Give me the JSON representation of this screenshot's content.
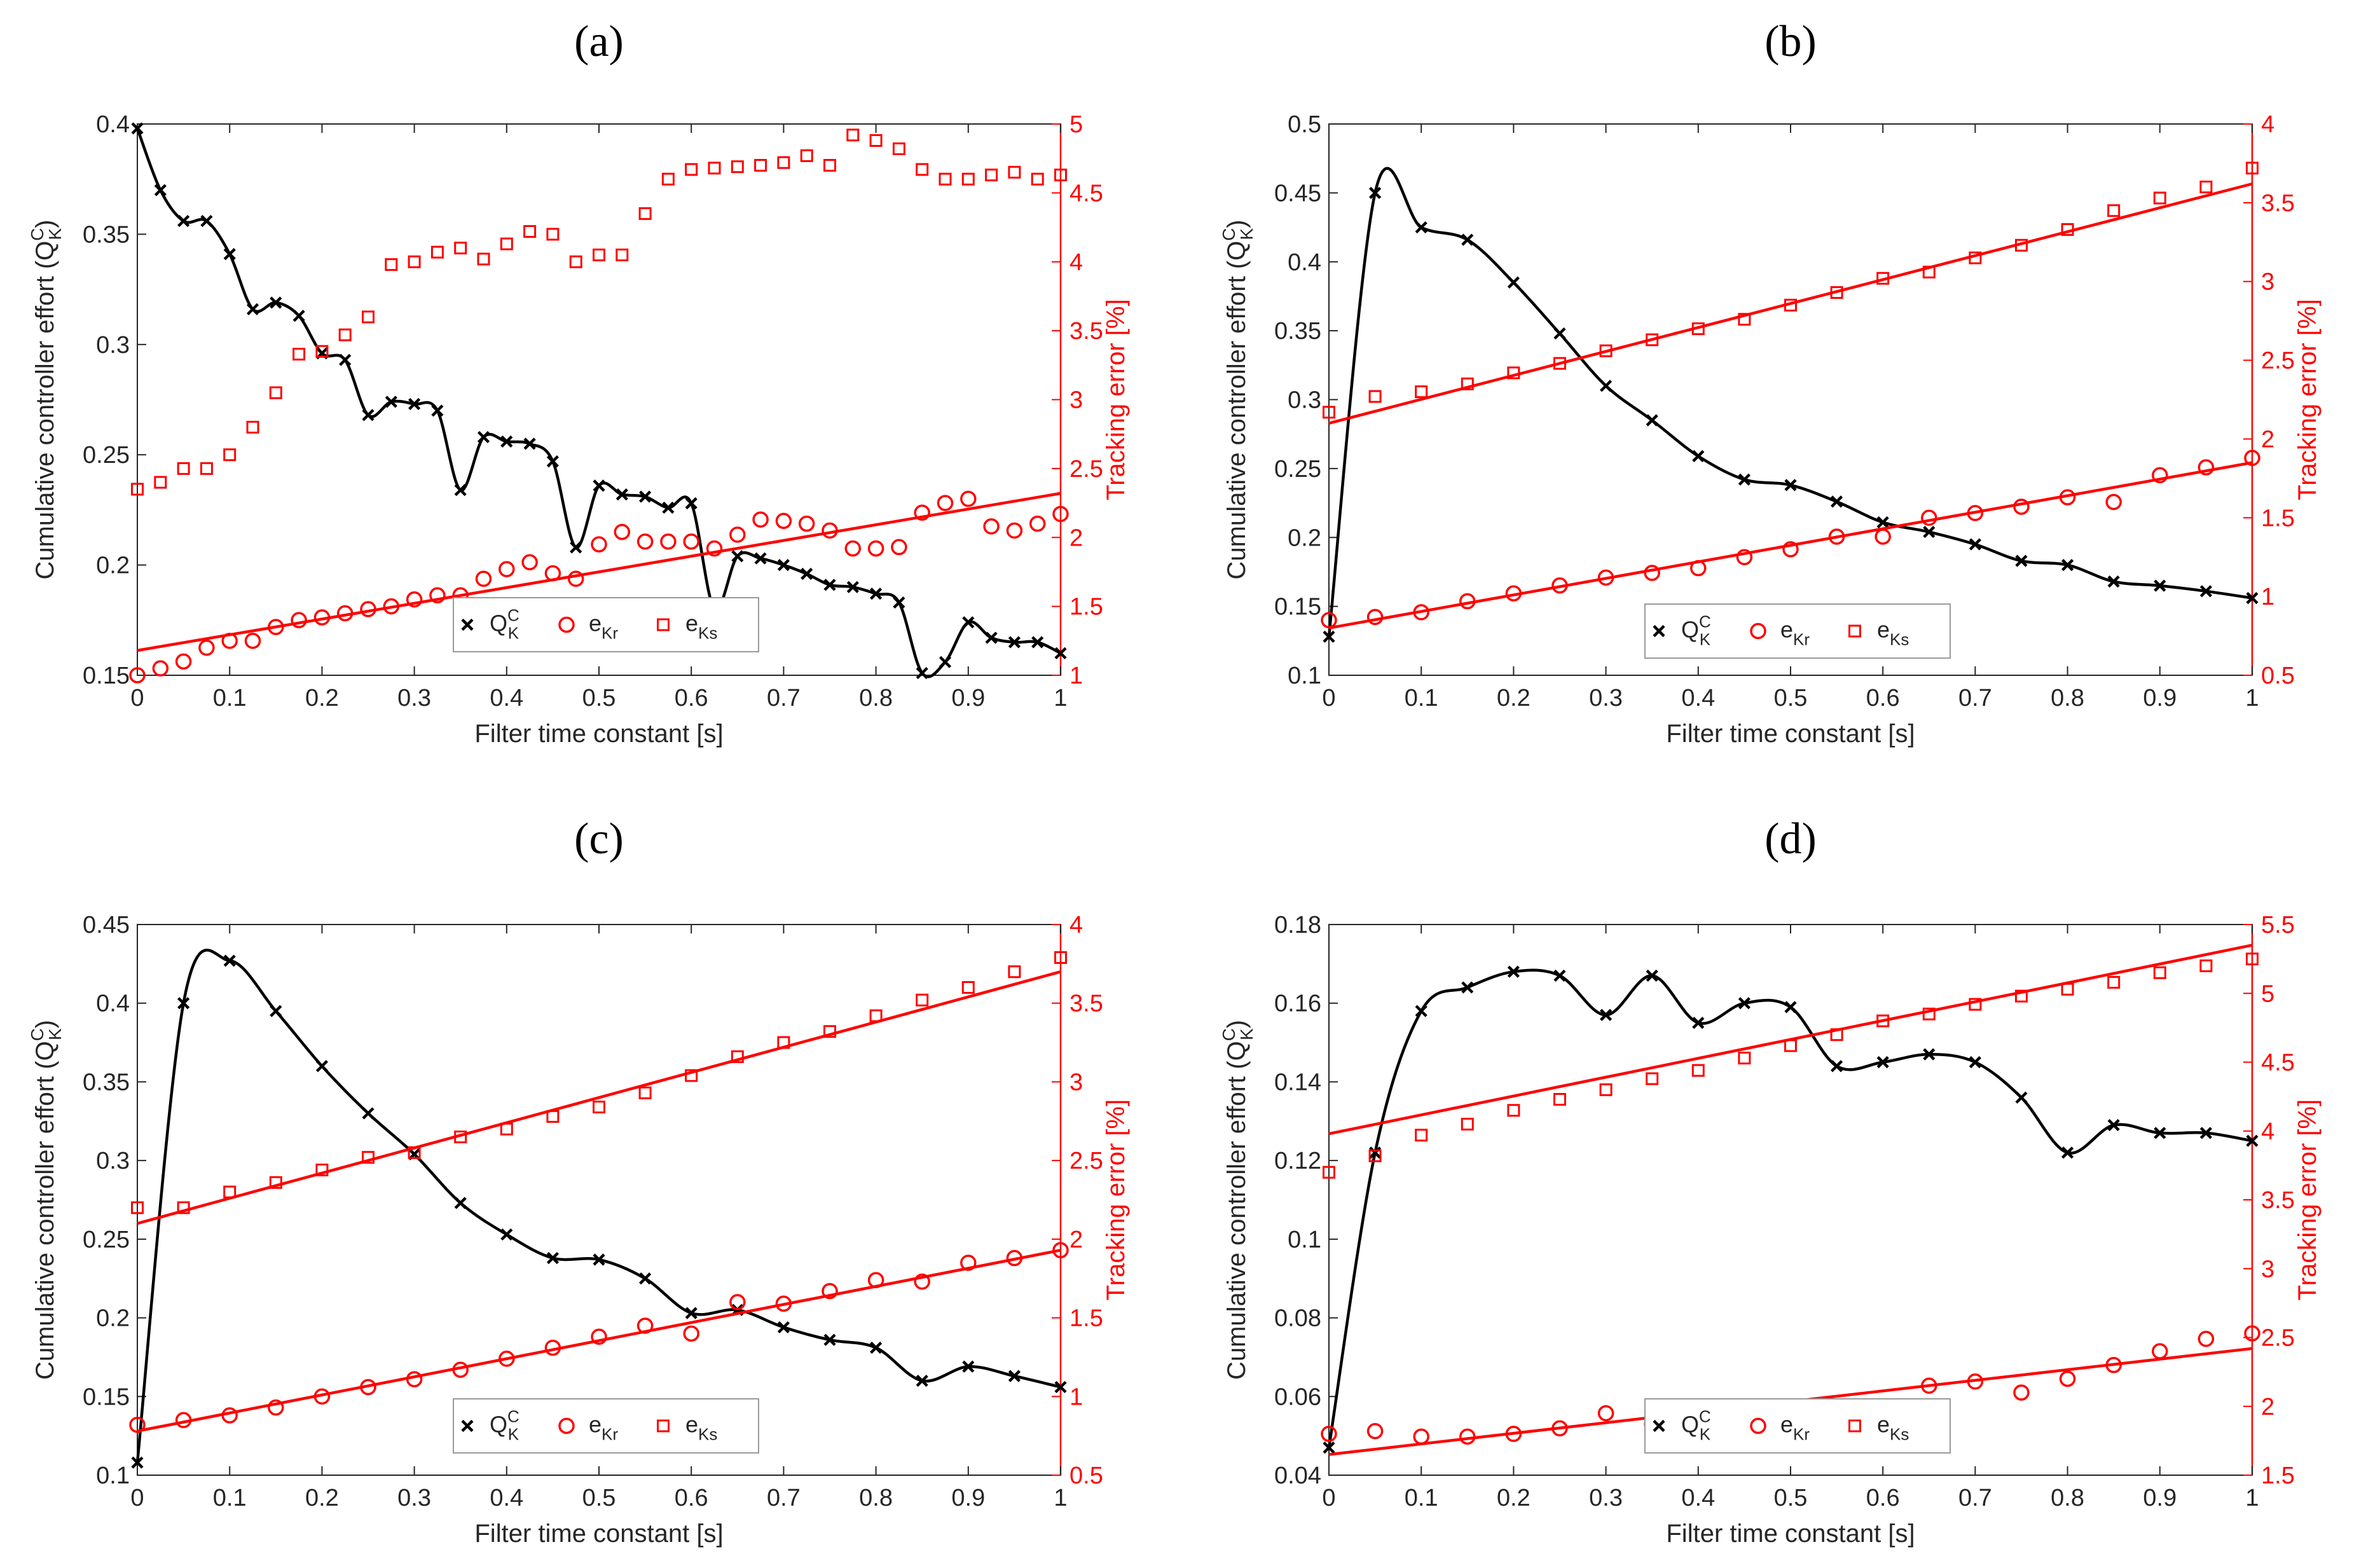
{
  "colors": {
    "black": "#000000",
    "red": "#ff0000",
    "grid": "#c8c8c8",
    "legend_border": "#9a9a9a"
  },
  "chart_data": [
    {
      "type": "line",
      "title": "(a)",
      "xlabel": "Filter time constant [s]",
      "ylabel_left": "Cumulative controller effort (Q_K^C)",
      "ylabel_right": "Tracking error [%]",
      "xlim": [
        0,
        1
      ],
      "ylim_left": [
        0.15,
        0.4
      ],
      "ylim_right": [
        1,
        5
      ],
      "xticks": [
        "0",
        "0.1",
        "0.2",
        "0.3",
        "0.4",
        "0.5",
        "0.6",
        "0.7",
        "0.8",
        "0.9",
        "1"
      ],
      "yticks_left": [
        "0.15",
        "0.2",
        "0.25",
        "0.3",
        "0.35",
        "0.4"
      ],
      "yticks_right": [
        "1",
        "1.5",
        "2",
        "2.5",
        "3",
        "3.5",
        "4",
        "4.5",
        "5"
      ],
      "legend": [
        "Q_K^C",
        "e_Kr",
        "e_Ks"
      ],
      "series": [
        {
          "name": "Q_K^C",
          "axis": "left",
          "marker": "x",
          "color": "black",
          "curve": true,
          "x": [
            0,
            0.025,
            0.05,
            0.075,
            0.1,
            0.125,
            0.15,
            0.175,
            0.2,
            0.225,
            0.25,
            0.275,
            0.3,
            0.325,
            0.35,
            0.375,
            0.4,
            0.425,
            0.45,
            0.475,
            0.5,
            0.525,
            0.55,
            0.575,
            0.6,
            0.625,
            0.65,
            0.675,
            0.7,
            0.725,
            0.75,
            0.775,
            0.8,
            0.825,
            0.85,
            0.875,
            0.9,
            0.925,
            0.95,
            0.975,
            1
          ],
          "y": [
            0.398,
            0.37,
            0.356,
            0.356,
            0.341,
            0.316,
            0.319,
            0.313,
            0.296,
            0.293,
            0.268,
            0.274,
            0.273,
            0.27,
            0.234,
            0.258,
            0.256,
            0.255,
            0.247,
            0.208,
            0.236,
            0.232,
            0.231,
            0.226,
            0.228,
            0.18,
            0.204,
            0.203,
            0.2,
            0.196,
            0.191,
            0.19,
            0.187,
            0.183,
            0.151,
            0.156,
            0.174,
            0.167,
            0.165,
            0.165,
            0.16
          ]
        },
        {
          "name": "e_Kr",
          "axis": "right",
          "marker": "o",
          "color": "red",
          "x": [
            0,
            0.025,
            0.05,
            0.075,
            0.1,
            0.125,
            0.15,
            0.175,
            0.2,
            0.225,
            0.25,
            0.275,
            0.3,
            0.325,
            0.35,
            0.375,
            0.4,
            0.425,
            0.45,
            0.475,
            0.5,
            0.525,
            0.55,
            0.575,
            0.6,
            0.625,
            0.65,
            0.675,
            0.7,
            0.725,
            0.75,
            0.775,
            0.8,
            0.825,
            0.85,
            0.875,
            0.9,
            0.925,
            0.95,
            0.975,
            1
          ],
          "y": [
            1.0,
            1.05,
            1.1,
            1.2,
            1.25,
            1.25,
            1.35,
            1.4,
            1.42,
            1.45,
            1.48,
            1.5,
            1.55,
            1.58,
            1.58,
            1.7,
            1.77,
            1.82,
            1.74,
            1.7,
            1.95,
            2.04,
            1.97,
            1.97,
            1.97,
            1.92,
            2.02,
            2.13,
            2.12,
            2.1,
            2.05,
            1.92,
            1.92,
            1.93,
            2.18,
            2.25,
            2.28,
            2.08,
            2.05,
            2.1,
            2.17
          ],
          "fit": [
            1.18,
            2.32
          ]
        },
        {
          "name": "e_Ks",
          "axis": "right",
          "marker": "s",
          "color": "red",
          "x": [
            0,
            0.025,
            0.05,
            0.075,
            0.1,
            0.125,
            0.15,
            0.175,
            0.2,
            0.225,
            0.25,
            0.275,
            0.3,
            0.325,
            0.35,
            0.375,
            0.4,
            0.425,
            0.45,
            0.475,
            0.5,
            0.525,
            0.55,
            0.575,
            0.6,
            0.625,
            0.65,
            0.675,
            0.7,
            0.725,
            0.75,
            0.775,
            0.8,
            0.825,
            0.85,
            0.875,
            0.9,
            0.925,
            0.95,
            0.975,
            1
          ],
          "y": [
            2.35,
            2.4,
            2.5,
            2.5,
            2.6,
            2.8,
            3.05,
            3.33,
            3.35,
            3.47,
            3.6,
            3.98,
            4.0,
            4.07,
            4.1,
            4.02,
            4.13,
            4.22,
            4.2,
            4.0,
            4.05,
            4.05,
            4.35,
            4.6,
            4.67,
            4.68,
            4.69,
            4.7,
            4.72,
            4.77,
            4.7,
            4.92,
            4.88,
            4.82,
            4.67,
            4.6,
            4.6,
            4.63,
            4.65,
            4.6,
            4.63
          ]
        }
      ]
    },
    {
      "type": "line",
      "title": "(b)",
      "xlabel": "Filter time constant [s]",
      "ylabel_left": "Cumulative controller effort (Q_K^C)",
      "ylabel_right": "Tracking error [%]",
      "xlim": [
        0,
        1
      ],
      "ylim_left": [
        0.1,
        0.5
      ],
      "ylim_right": [
        0.5,
        4
      ],
      "xticks": [
        "0",
        "0.1",
        "0.2",
        "0.3",
        "0.4",
        "0.5",
        "0.6",
        "0.7",
        "0.8",
        "0.9",
        "1"
      ],
      "yticks_left": [
        "0.1",
        "0.15",
        "0.2",
        "0.25",
        "0.3",
        "0.35",
        "0.4",
        "0.45",
        "0.5"
      ],
      "yticks_right": [
        "0.5",
        "1",
        "1.5",
        "2",
        "2.5",
        "3",
        "3.5",
        "4"
      ],
      "legend": [
        "Q_K^C",
        "e_Kr",
        "e_Ks"
      ],
      "series": [
        {
          "name": "Q_K^C",
          "axis": "left",
          "marker": "x",
          "color": "black",
          "curve": true,
          "x": [
            0,
            0.05,
            0.1,
            0.15,
            0.2,
            0.25,
            0.3,
            0.35,
            0.4,
            0.45,
            0.5,
            0.55,
            0.6,
            0.65,
            0.7,
            0.75,
            0.8,
            0.85,
            0.9,
            0.95,
            1
          ],
          "y": [
            0.128,
            0.45,
            0.425,
            0.416,
            0.385,
            0.348,
            0.31,
            0.285,
            0.259,
            0.242,
            0.238,
            0.226,
            0.211,
            0.204,
            0.195,
            0.183,
            0.18,
            0.168,
            0.165,
            0.161,
            0.156
          ]
        },
        {
          "name": "e_Kr",
          "axis": "right",
          "marker": "o",
          "color": "red",
          "x": [
            0,
            0.05,
            0.1,
            0.15,
            0.2,
            0.25,
            0.3,
            0.35,
            0.4,
            0.45,
            0.5,
            0.55,
            0.6,
            0.65,
            0.7,
            0.75,
            0.8,
            0.85,
            0.9,
            0.95,
            1
          ],
          "y": [
            0.85,
            0.87,
            0.9,
            0.97,
            1.02,
            1.07,
            1.12,
            1.15,
            1.18,
            1.25,
            1.3,
            1.38,
            1.38,
            1.5,
            1.53,
            1.57,
            1.63,
            1.6,
            1.77,
            1.82,
            1.88
          ],
          "fit": [
            0.8,
            1.85
          ]
        },
        {
          "name": "e_Ks",
          "axis": "right",
          "marker": "s",
          "color": "red",
          "x": [
            0,
            0.05,
            0.1,
            0.15,
            0.2,
            0.25,
            0.3,
            0.35,
            0.4,
            0.45,
            0.5,
            0.55,
            0.6,
            0.65,
            0.7,
            0.75,
            0.8,
            0.85,
            0.9,
            0.95,
            1
          ],
          "y": [
            2.17,
            2.27,
            2.3,
            2.35,
            2.42,
            2.48,
            2.56,
            2.63,
            2.7,
            2.76,
            2.85,
            2.93,
            3.02,
            3.06,
            3.15,
            3.23,
            3.33,
            3.45,
            3.53,
            3.6,
            3.72
          ],
          "fit": [
            2.1,
            3.62
          ]
        }
      ]
    },
    {
      "type": "line",
      "title": "(c)",
      "xlabel": "Filter time constant [s]",
      "ylabel_left": "Cumulative controller effort (Q_K^C)",
      "ylabel_right": "Tracking error [%]",
      "xlim": [
        0,
        1
      ],
      "ylim_left": [
        0.1,
        0.45
      ],
      "ylim_right": [
        0.5,
        4
      ],
      "xticks": [
        "0",
        "0.1",
        "0.2",
        "0.3",
        "0.4",
        "0.5",
        "0.6",
        "0.7",
        "0.8",
        "0.9",
        "1"
      ],
      "yticks_left": [
        "0.1",
        "0.15",
        "0.2",
        "0.25",
        "0.3",
        "0.35",
        "0.4",
        "0.45"
      ],
      "yticks_right": [
        "0.5",
        "1",
        "1.5",
        "2",
        "2.5",
        "3",
        "3.5",
        "4"
      ],
      "legend": [
        "Q_K^C",
        "e_Kr",
        "e_Ks"
      ],
      "series": [
        {
          "name": "Q_K^C",
          "axis": "left",
          "marker": "x",
          "color": "black",
          "curve": true,
          "x": [
            0,
            0.05,
            0.1,
            0.15,
            0.2,
            0.25,
            0.3,
            0.35,
            0.4,
            0.45,
            0.5,
            0.55,
            0.6,
            0.65,
            0.7,
            0.75,
            0.8,
            0.85,
            0.9,
            0.95,
            1
          ],
          "y": [
            0.108,
            0.4,
            0.427,
            0.395,
            0.36,
            0.33,
            0.304,
            0.273,
            0.253,
            0.238,
            0.237,
            0.225,
            0.203,
            0.205,
            0.194,
            0.186,
            0.181,
            0.16,
            0.169,
            0.163,
            0.156
          ]
        },
        {
          "name": "e_Kr",
          "axis": "right",
          "marker": "o",
          "color": "red",
          "x": [
            0,
            0.05,
            0.1,
            0.15,
            0.2,
            0.25,
            0.3,
            0.35,
            0.4,
            0.45,
            0.5,
            0.55,
            0.6,
            0.65,
            0.7,
            0.75,
            0.8,
            0.85,
            0.9,
            0.95,
            1
          ],
          "y": [
            0.82,
            0.85,
            0.88,
            0.93,
            1.0,
            1.06,
            1.11,
            1.17,
            1.24,
            1.31,
            1.38,
            1.45,
            1.4,
            1.6,
            1.59,
            1.67,
            1.74,
            1.73,
            1.85,
            1.88,
            1.93
          ],
          "fit": [
            0.78,
            1.93
          ]
        },
        {
          "name": "e_Ks",
          "axis": "right",
          "marker": "s",
          "color": "red",
          "x": [
            0,
            0.05,
            0.1,
            0.15,
            0.2,
            0.25,
            0.3,
            0.35,
            0.4,
            0.45,
            0.5,
            0.55,
            0.6,
            0.65,
            0.7,
            0.75,
            0.8,
            0.85,
            0.9,
            0.95,
            1
          ],
          "y": [
            2.2,
            2.2,
            2.3,
            2.36,
            2.44,
            2.52,
            2.55,
            2.65,
            2.7,
            2.78,
            2.84,
            2.93,
            3.04,
            3.16,
            3.25,
            3.32,
            3.42,
            3.52,
            3.6,
            3.7,
            3.79
          ],
          "fit": [
            2.1,
            3.7
          ]
        }
      ]
    },
    {
      "type": "line",
      "title": "(d)",
      "xlabel": "Filter time constant [s]",
      "ylabel_left": "Cumulative controller effort (Q_K^C)",
      "ylabel_right": "Tracking error [%]",
      "xlim": [
        0,
        1
      ],
      "ylim_left": [
        0.04,
        0.18
      ],
      "ylim_right": [
        1.5,
        5.5
      ],
      "xticks": [
        "0",
        "0.1",
        "0.2",
        "0.3",
        "0.4",
        "0.5",
        "0.6",
        "0.7",
        "0.8",
        "0.9",
        "1"
      ],
      "yticks_left": [
        "0.04",
        "0.06",
        "0.08",
        "0.1",
        "0.12",
        "0.14",
        "0.16",
        "0.18"
      ],
      "yticks_right": [
        "1.5",
        "2",
        "2.5",
        "3",
        "3.5",
        "4",
        "4.5",
        "5",
        "5.5"
      ],
      "legend": [
        "Q_K^C",
        "e_Kr",
        "e_Ks"
      ],
      "series": [
        {
          "name": "Q_K^C",
          "axis": "left",
          "marker": "x",
          "color": "black",
          "curve": true,
          "x": [
            0,
            0.05,
            0.1,
            0.15,
            0.2,
            0.25,
            0.3,
            0.35,
            0.4,
            0.45,
            0.5,
            0.55,
            0.6,
            0.65,
            0.7,
            0.75,
            0.8,
            0.85,
            0.9,
            0.95,
            1
          ],
          "y": [
            0.047,
            0.122,
            0.158,
            0.164,
            0.168,
            0.167,
            0.157,
            0.167,
            0.155,
            0.16,
            0.159,
            0.144,
            0.145,
            0.147,
            0.145,
            0.136,
            0.122,
            0.129,
            0.127,
            0.127,
            0.125
          ]
        },
        {
          "name": "e_Kr",
          "axis": "right",
          "marker": "o",
          "color": "red",
          "x": [
            0,
            0.05,
            0.1,
            0.15,
            0.2,
            0.25,
            0.3,
            0.35,
            0.4,
            0.45,
            0.5,
            0.55,
            0.6,
            0.65,
            0.7,
            0.75,
            0.8,
            0.85,
            0.9,
            0.95,
            1
          ],
          "y": [
            1.8,
            1.82,
            1.78,
            1.78,
            1.8,
            1.84,
            1.95,
            1.87,
            1.85,
            1.9,
            1.97,
            2.0,
            2.0,
            2.15,
            2.18,
            2.1,
            2.2,
            2.3,
            2.4,
            2.49,
            2.53
          ],
          "fit": [
            1.65,
            2.42
          ]
        },
        {
          "name": "e_Ks",
          "axis": "right",
          "marker": "s",
          "color": "red",
          "x": [
            0,
            0.05,
            0.1,
            0.15,
            0.2,
            0.25,
            0.3,
            0.35,
            0.4,
            0.45,
            0.5,
            0.55,
            0.6,
            0.65,
            0.7,
            0.75,
            0.8,
            0.85,
            0.9,
            0.95,
            1
          ],
          "y": [
            3.7,
            3.82,
            3.97,
            4.05,
            4.15,
            4.23,
            4.3,
            4.38,
            4.44,
            4.53,
            4.62,
            4.7,
            4.8,
            4.85,
            4.92,
            4.98,
            5.03,
            5.08,
            5.15,
            5.2,
            5.25
          ],
          "fit": [
            3.98,
            5.35
          ]
        }
      ]
    }
  ]
}
